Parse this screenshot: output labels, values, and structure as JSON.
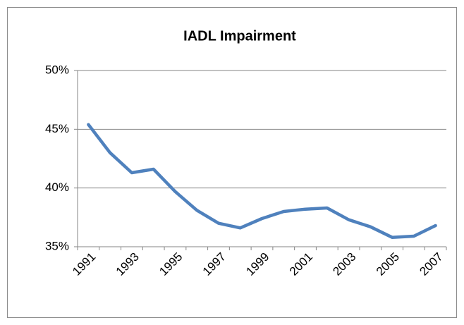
{
  "chart_data": {
    "type": "line",
    "title": "IADL Impairment",
    "categories": [
      "1991",
      null,
      "1993",
      null,
      "1995",
      null,
      "1997",
      null,
      "1999",
      null,
      "2001",
      null,
      "2003",
      null,
      "2005",
      null,
      "2007"
    ],
    "values": [
      45.4,
      43.0,
      41.3,
      41.6,
      39.7,
      38.1,
      37.0,
      36.6,
      37.4,
      38.0,
      38.2,
      38.3,
      37.3,
      36.7,
      35.8,
      35.9,
      36.8
    ],
    "color": "#4f81bd",
    "ylim": [
      35,
      50
    ],
    "yticks": [
      {
        "value": 35,
        "label": "35%"
      },
      {
        "value": 40,
        "label": "40%"
      },
      {
        "value": 45,
        "label": "45%"
      },
      {
        "value": 50,
        "label": "50%"
      }
    ],
    "grid": true
  }
}
